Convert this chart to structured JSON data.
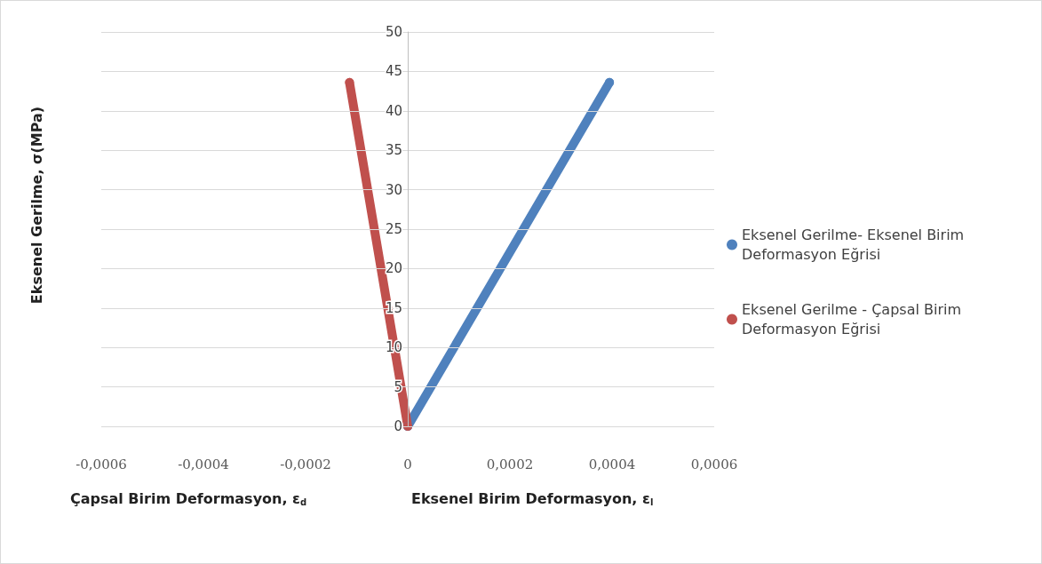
{
  "chart_data": {
    "type": "line",
    "ylabel": "Eksenel Gerilme, σ(MPa)",
    "xlabel": "Eksenel Birim Deformasyon, ε$_{l}$",
    "annotations": [
      "Çapsal Birim Deformasyon, ε$_{d}$"
    ],
    "series": [
      {
        "name": "Eksenel Gerilme- Eksenel Birim Deformasyon Eğrisi",
        "color": "#4f81bd",
        "x": [
          0,
          0.000395
        ],
        "values": [
          0,
          43.6
        ]
      },
      {
        "name": "Eksenel Gerilme - Çapsal Birim Deformasyon Eğrisi",
        "color": "#c0504d",
        "x": [
          0,
          -0.000114
        ],
        "values": [
          0,
          43.6
        ]
      }
    ],
    "xlim": [
      -0.0006,
      0.0006
    ],
    "xticks": [
      {
        "value": -0.0006,
        "label": "-0,0006"
      },
      {
        "value": -0.0004,
        "label": "-0,0004"
      },
      {
        "value": -0.0002,
        "label": "-0,0002"
      },
      0,
      {
        "value": 0.0002,
        "label": "0,0002"
      },
      {
        "value": 0.0004,
        "label": "0,0004"
      },
      {
        "value": 0.0006,
        "label": "0,0006"
      }
    ],
    "ylim": [
      0,
      50
    ],
    "yticks": [
      0,
      5,
      10,
      15,
      20,
      25,
      30,
      35,
      40,
      45,
      50
    ],
    "grid": "y",
    "legend": "right",
    "marker": "circle",
    "line_style": "solid"
  }
}
